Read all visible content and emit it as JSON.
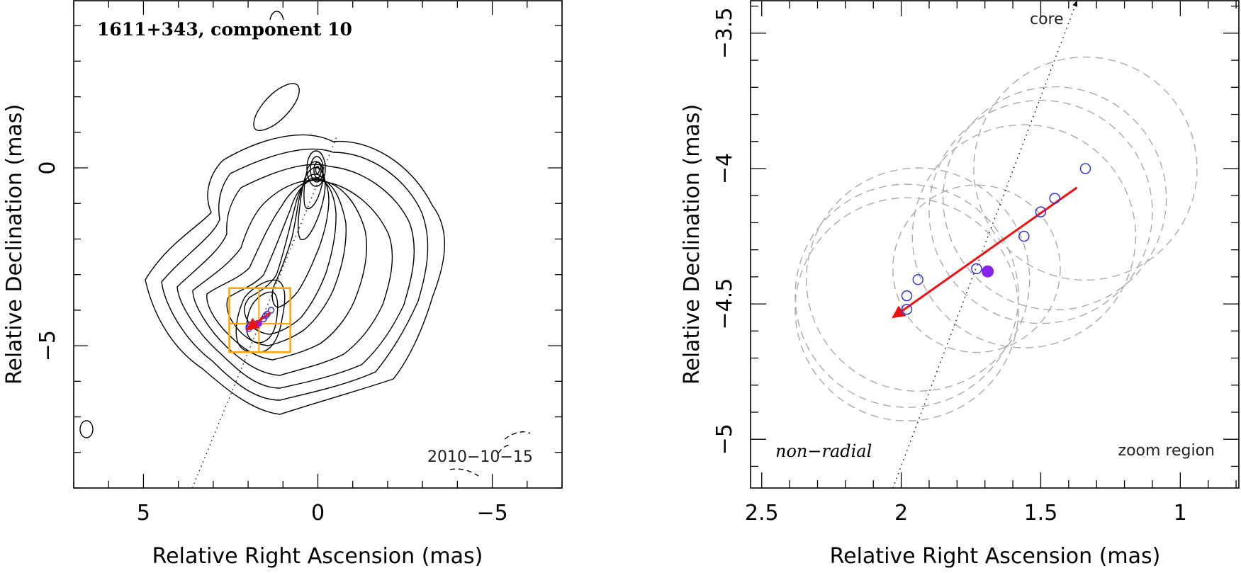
{
  "chart_data": [
    {
      "type": "contour",
      "panel": "left",
      "title": "1611+343, component 10",
      "date_label": "2010−10−15",
      "xlabel": "Relative Right Ascension (mas)",
      "ylabel": "Relative Declination (mas)",
      "xlim": [
        7.0,
        -7.0
      ],
      "ylim": [
        -9.0,
        4.7
      ],
      "x_ticks": [
        5,
        0,
        -5
      ],
      "x_tick_labels": [
        "5",
        "0",
        "−5"
      ],
      "y_ticks": [
        0,
        -5
      ],
      "y_tick_labels": [
        "0",
        "−5"
      ],
      "contour_peak": [
        0.0,
        0.0
      ],
      "zoom_box": {
        "x_range": [
          2.54,
          0.79
        ],
        "y_range": [
          -5.18,
          -3.38
        ]
      },
      "trajectory_line": {
        "from": [
          3.6,
          -9.0
        ],
        "to": [
          -0.55,
          0.9
        ]
      },
      "points_open": [
        [
          1.34,
          -4.0
        ],
        [
          1.45,
          -4.11
        ],
        [
          1.5,
          -4.16
        ],
        [
          1.56,
          -4.25
        ],
        [
          1.73,
          -4.37
        ],
        [
          1.94,
          -4.41
        ],
        [
          1.98,
          -4.47
        ],
        [
          1.98,
          -4.52
        ]
      ],
      "point_filled": [
        1.69,
        -4.38
      ],
      "velocity_arrow": {
        "from": [
          1.37,
          -4.07
        ],
        "to": [
          2.03,
          -4.55
        ]
      }
    },
    {
      "type": "scatter",
      "panel": "right",
      "label_left": "non−radial",
      "label_right": "zoom region",
      "arrow_label": "core",
      "xlabel": "Relative Right Ascension (mas)",
      "ylabel": "Relative Declination (mas)",
      "xlim": [
        2.54,
        0.79
      ],
      "ylim": [
        -5.18,
        -3.38
      ],
      "x_ticks": [
        2.5,
        2,
        1.5,
        1
      ],
      "x_tick_labels": [
        "2.5",
        "2",
        "1.5",
        "1"
      ],
      "y_ticks": [
        -3.5,
        -4,
        -4.5,
        -5
      ],
      "y_tick_labels": [
        "−3.5",
        "−4",
        "−4.5",
        "−5"
      ],
      "points_open": [
        [
          1.34,
          -4.0
        ],
        [
          1.45,
          -4.11
        ],
        [
          1.5,
          -4.16
        ],
        [
          1.56,
          -4.25
        ],
        [
          1.73,
          -4.37
        ],
        [
          1.94,
          -4.41
        ],
        [
          1.98,
          -4.47
        ],
        [
          1.98,
          -4.52
        ]
      ],
      "point_filled": [
        1.69,
        -4.38
      ],
      "velocity_arrow": {
        "from": [
          1.37,
          -4.07
        ],
        "to": [
          2.03,
          -4.55
        ]
      },
      "core_direction_line": {
        "from": [
          2.03,
          -5.18
        ],
        "to": [
          1.37,
          -3.38
        ]
      },
      "error_circles": [
        {
          "x": 1.34,
          "y": -4.0,
          "r": 0.4
        },
        {
          "x": 1.45,
          "y": -4.11,
          "r": 0.4
        },
        {
          "x": 1.5,
          "y": -4.16,
          "r": 0.4
        },
        {
          "x": 1.56,
          "y": -4.25,
          "r": 0.4
        },
        {
          "x": 1.73,
          "y": -4.37,
          "r": 0.3
        },
        {
          "x": 1.94,
          "y": -4.41,
          "r": 0.4
        },
        {
          "x": 1.98,
          "y": -4.47,
          "r": 0.4
        },
        {
          "x": 1.98,
          "y": -4.52,
          "r": 0.4
        }
      ]
    }
  ],
  "colors": {
    "contour": "#000000",
    "open_point": "#3333dd",
    "filled_point": "#8822ee",
    "arrow": "#ee1111",
    "zoom_box": "#ffa500",
    "error_circle": "#aaaaaa"
  }
}
